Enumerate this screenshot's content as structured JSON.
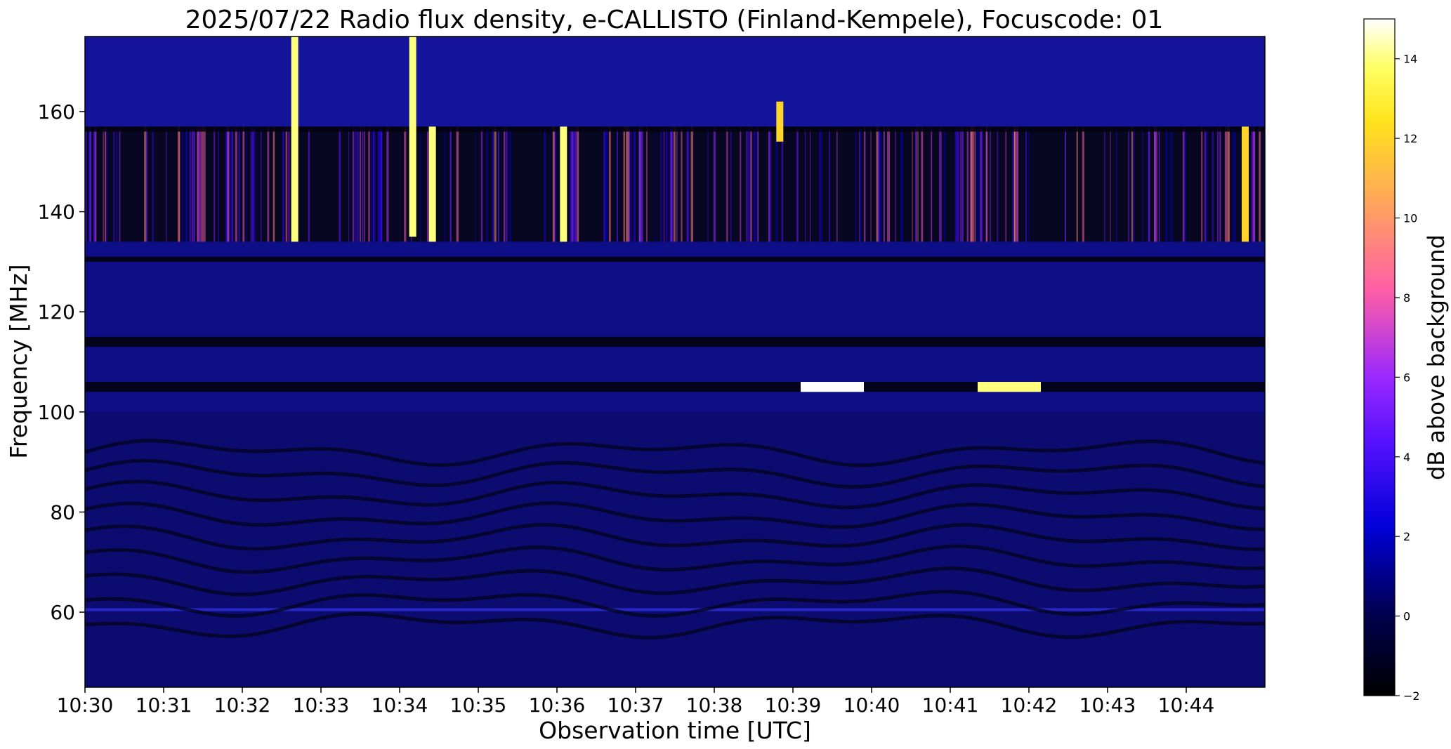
{
  "chart_data": [
    {
      "type": "heatmap",
      "title": "2025/07/22  Radio flux density, e-CALLISTO (Finland-Kempele), Focuscode: 01",
      "xlabel": "Observation time [UTC]",
      "ylabel": "Frequency [MHz]",
      "x_ticks": [
        "10:30",
        "10:31",
        "10:32",
        "10:33",
        "10:34",
        "10:35",
        "10:36",
        "10:37",
        "10:38",
        "10:39",
        "10:40",
        "10:41",
        "10:42",
        "10:43",
        "10:44"
      ],
      "xlim": [
        "10:30",
        "10:45"
      ],
      "y_ticks": [
        60,
        80,
        100,
        120,
        140,
        160
      ],
      "ylim": [
        45,
        175
      ],
      "colormap": "gnuplot2",
      "colorbar": {
        "label": "dB above background",
        "range": [
          -2,
          15
        ],
        "ticks": [
          -2,
          0,
          2,
          4,
          6,
          8,
          10,
          12,
          14
        ]
      },
      "features": {
        "persistent_bands_mhz": [
          {
            "band": [
              104,
              106
            ],
            "level": "low"
          },
          {
            "band": [
              113,
              115
            ],
            "level": "low"
          },
          {
            "band": [
              130,
              131
            ],
            "level": "low"
          },
          {
            "band": [
              156,
              157
            ],
            "level": "low"
          },
          {
            "band": [
              60.2,
              60.8
            ],
            "level": "medium"
          }
        ],
        "strong_emission_bursts": [
          {
            "time": "10:32:40",
            "freq_range": [
              134,
              175
            ],
            "peak_db": 14
          },
          {
            "time": "10:34:10",
            "freq_range": [
              135,
              175
            ],
            "peak_db": 14
          },
          {
            "time": "10:34:25",
            "freq_range": [
              134,
              157
            ],
            "peak_db": 14
          },
          {
            "time": "10:36:05",
            "freq_range": [
              134,
              157
            ],
            "peak_db": 14
          },
          {
            "time": "10:38:50",
            "freq_range": [
              154,
              162
            ],
            "peak_db": 12
          },
          {
            "time": "10:39:30",
            "freq_range": [
              104,
              106
            ],
            "peak_db": 15
          },
          {
            "time": "10:41:45",
            "freq_range": [
              104,
              106
            ],
            "peak_db": 14
          },
          {
            "time": "10:44:45",
            "freq_range": [
              134,
              157
            ],
            "peak_db": 12
          }
        ]
      }
    }
  ]
}
